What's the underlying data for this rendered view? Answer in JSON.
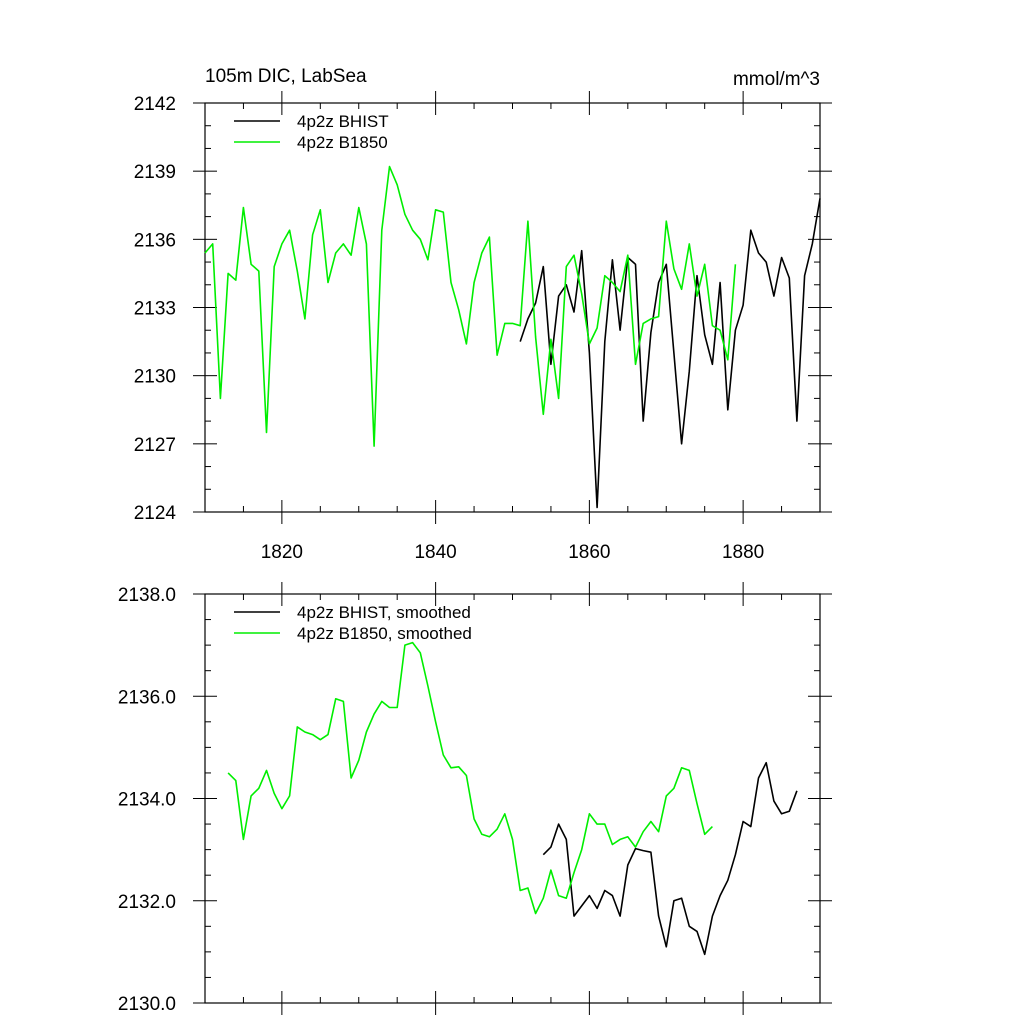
{
  "chart_data": [
    {
      "type": "line",
      "title": "105m DIC, LabSea",
      "units": "mmol/m^3",
      "xlabel": "",
      "ylabel": "",
      "xlim": [
        1810,
        1890
      ],
      "ylim": [
        2124,
        2142
      ],
      "x_ticks": [
        1820,
        1840,
        1860,
        1880
      ],
      "y_ticks": [
        2124,
        2127,
        2130,
        2133,
        2136,
        2139,
        2142
      ],
      "y_tick_labels": [
        "2124",
        "2127",
        "2130",
        "2133",
        "2136",
        "2139",
        "2142"
      ],
      "legend_position": "top-left",
      "series": [
        {
          "name": "4p2z BHIST",
          "color": "#000000",
          "x0": 1851,
          "values": [
            2131.5,
            2132.5,
            2133.2,
            2134.8,
            2130.5,
            2133.5,
            2134,
            2132.8,
            2135.5,
            2131,
            2124.2,
            2131.5,
            2135.1,
            2132,
            2135.2,
            2134.9,
            2128,
            2131.9,
            2134.1,
            2134.9,
            2131,
            2127,
            2130.2,
            2134.4,
            2131.8,
            2130.5,
            2134.1,
            2128.5,
            2132,
            2133.1,
            2136.4,
            2135.4,
            2135,
            2133.5,
            2135.2,
            2134.3,
            2128,
            2134.4,
            2135.8,
            2137.8
          ]
        },
        {
          "name": "4p2z B1850",
          "color": "#00ee00",
          "x0": 1810,
          "values": [
            2135.4,
            2135.8,
            2129,
            2134.5,
            2134.2,
            2137.4,
            2134.9,
            2134.6,
            2127.5,
            2134.8,
            2135.8,
            2136.4,
            2134.6,
            2132.5,
            2136.2,
            2137.3,
            2134.1,
            2135.4,
            2135.8,
            2135.3,
            2137.4,
            2135.8,
            2126.9,
            2136.4,
            2139.2,
            2138.4,
            2137.1,
            2136.4,
            2136,
            2135.1,
            2137.3,
            2137.2,
            2134.1,
            2132.9,
            2131.4,
            2134.1,
            2135.4,
            2136.1,
            2130.9,
            2132.3,
            2132.3,
            2132.2,
            2136.8,
            2131.7,
            2128.3,
            2131.6,
            2129,
            2134.8,
            2135.3,
            2133.6,
            2131.4,
            2132.1,
            2134.4,
            2134.1,
            2133.7,
            2135.3,
            2130.5,
            2132.3,
            2132.5,
            2132.6,
            2136.8,
            2134.7,
            2133.8,
            2135.8,
            2133.5,
            2134.9,
            2132.2,
            2132,
            2130.7,
            2134.9
          ]
        }
      ]
    },
    {
      "type": "line",
      "title": "",
      "xlabel": "",
      "ylabel": "",
      "xlim": [
        1810,
        1890
      ],
      "ylim": [
        2130,
        2138
      ],
      "x_ticks": [
        1820,
        1840,
        1860,
        1880
      ],
      "y_ticks": [
        2130,
        2132,
        2134,
        2136,
        2138
      ],
      "y_tick_labels": [
        "2130.0",
        "2132.0",
        "2134.0",
        "2136.0",
        "2138.0"
      ],
      "legend_position": "top-left",
      "series": [
        {
          "name": "4p2z BHIST, smoothed",
          "color": "#000000",
          "x0": 1854,
          "values": [
            2132.9,
            2133.05,
            2133.5,
            2133.2,
            2131.7,
            2131.9,
            2132.1,
            2131.85,
            2132.2,
            2132.1,
            2131.7,
            2132.7,
            2133.02,
            2132.98,
            2132.95,
            2131.7,
            2131.1,
            2132,
            2132.05,
            2131.5,
            2131.4,
            2130.95,
            2131.7,
            2132.1,
            2132.4,
            2132.9,
            2133.55,
            2133.45,
            2134.4,
            2134.7,
            2133.95,
            2133.7,
            2133.75,
            2134.15
          ]
        },
        {
          "name": "4p2z B1850, smoothed",
          "color": "#00ee00",
          "x0": 1813,
          "values": [
            2134.5,
            2134.35,
            2133.2,
            2134.05,
            2134.2,
            2134.55,
            2134.1,
            2133.8,
            2134.05,
            2135.4,
            2135.3,
            2135.25,
            2135.15,
            2135.25,
            2135.95,
            2135.9,
            2134.4,
            2134.75,
            2135.3,
            2135.65,
            2135.9,
            2135.78,
            2135.78,
            2137,
            2137.05,
            2136.85,
            2136.2,
            2135.5,
            2134.85,
            2134.6,
            2134.62,
            2134.45,
            2133.6,
            2133.3,
            2133.25,
            2133.4,
            2133.7,
            2133.2,
            2132.2,
            2132.25,
            2131.75,
            2132.05,
            2132.6,
            2132.1,
            2132.05,
            2132.55,
            2133,
            2133.7,
            2133.5,
            2133.5,
            2133.1,
            2133.2,
            2133.25,
            2133.05,
            2133.35,
            2133.55,
            2133.35,
            2134.05,
            2134.2,
            2134.6,
            2134.55,
            2133.9,
            2133.3,
            2133.45
          ]
        }
      ]
    }
  ]
}
